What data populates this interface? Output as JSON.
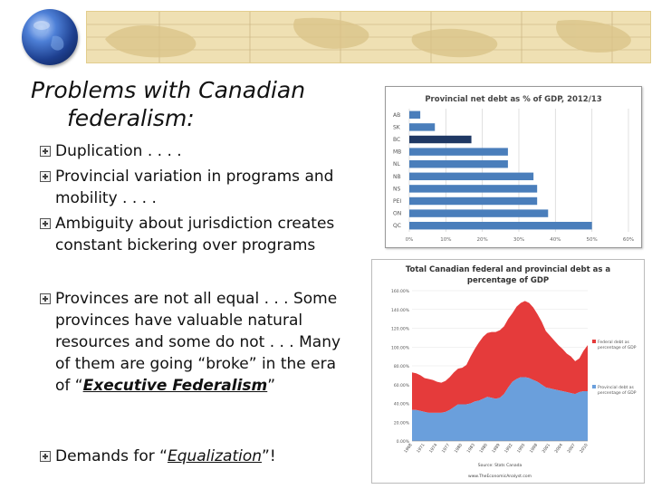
{
  "slide": {
    "title_line1": "Problems with Canadian",
    "title_line2": "federalism:",
    "bullets": [
      {
        "text": "Duplication . . . ."
      },
      {
        "text": "Provincial variation in programs and mobility . . . ."
      },
      {
        "text": "Ambiguity about jurisdiction creates constant bickering over programs"
      },
      {
        "text_before": "Provinces are not all equal . . . Some provinces have valuable natural resources and some do not . . . Many of them are going “broke” in the era of “",
        "emphasis": "Executive Federalism",
        "text_after": "”"
      },
      {
        "text_before": "Demands for “",
        "emphasis": "Equalization",
        "text_after": "”!"
      }
    ]
  },
  "chart_data": [
    {
      "type": "bar",
      "orientation": "horizontal",
      "title": "Provincial net debt as % of GDP, 2012/13",
      "categories": [
        "AB",
        "SK",
        "BC",
        "MB",
        "NL",
        "NB",
        "NS",
        "PEI",
        "ON",
        "QC"
      ],
      "values": [
        3,
        7,
        17,
        27,
        27,
        34,
        35,
        35,
        38,
        50
      ],
      "highlight": "BC",
      "xlim": [
        0,
        60
      ],
      "xticks": [
        "0%",
        "10%",
        "20%",
        "30%",
        "40%",
        "50%",
        "60%"
      ],
      "grid": true,
      "colors": {
        "bar": "#4a7ebb",
        "highlight": "#1f3864"
      }
    },
    {
      "type": "area",
      "stacked": true,
      "title": "Total Canadian federal and provincial debt as a percentage of GDP",
      "x": [
        1968,
        1969,
        1970,
        1971,
        1972,
        1973,
        1974,
        1975,
        1976,
        1977,
        1978,
        1979,
        1980,
        1981,
        1982,
        1983,
        1984,
        1985,
        1986,
        1987,
        1988,
        1989,
        1990,
        1991,
        1992,
        1993,
        1994,
        1995,
        1996,
        1997,
        1998,
        1999,
        2000,
        2001,
        2002,
        2003,
        2004,
        2005,
        2006,
        2007,
        2008,
        2009,
        2010
      ],
      "xticks": [
        "1968",
        "1971",
        "1974",
        "1977",
        "1980",
        "1983",
        "1986",
        "1989",
        "1992",
        "1995",
        "1998",
        "2001",
        "2004",
        "2007",
        "2010"
      ],
      "series": [
        {
          "name": "Provincial debt as percentage of GDP",
          "color": "#6a9fdc",
          "values": [
            33,
            33,
            32,
            31,
            30,
            30,
            30,
            30,
            31,
            33,
            36,
            39,
            39,
            39,
            40,
            42,
            43,
            45,
            47,
            46,
            45,
            46,
            50,
            57,
            63,
            66,
            68,
            68,
            67,
            65,
            63,
            60,
            57,
            56,
            55,
            54,
            53,
            52,
            51,
            50,
            52,
            53,
            53
          ]
        },
        {
          "name": "Federal debt as percentage of GDP",
          "color": "#e53b3b",
          "values": [
            40,
            39,
            38,
            36,
            36,
            35,
            33,
            32,
            33,
            35,
            37,
            38,
            39,
            42,
            50,
            56,
            62,
            66,
            68,
            70,
            71,
            72,
            72,
            73,
            73,
            77,
            79,
            81,
            80,
            77,
            72,
            67,
            60,
            56,
            52,
            48,
            45,
            41,
            39,
            35,
            36,
            43,
            49
          ]
        }
      ],
      "ylim": [
        0,
        160
      ],
      "yticks": [
        "0.00%",
        "20.00%",
        "40.00%",
        "60.00%",
        "80.00%",
        "100.00%",
        "120.00%",
        "140.00%",
        "160.00%"
      ],
      "source": "Source: Stats Canada",
      "website": "www.TheEconomicAnalyst.com",
      "legend_position": "right"
    }
  ]
}
